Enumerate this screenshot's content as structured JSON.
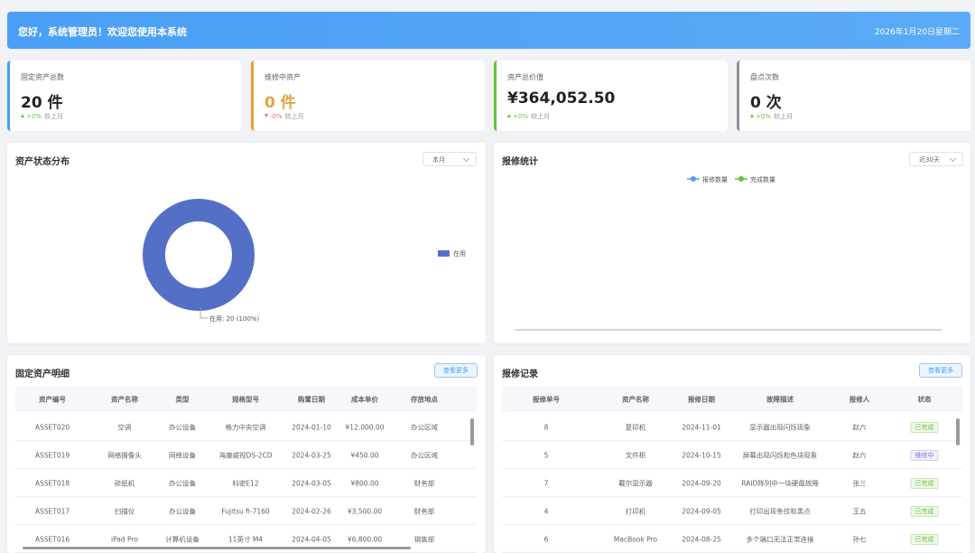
{
  "header": {
    "greeting": "您好，系统管理员！欢迎您使用本系统",
    "date": "2026年1月20日星期二"
  },
  "stats": [
    {
      "label": "固定资产总数",
      "value": "20 件",
      "trend": "+0%",
      "compare": "较上月",
      "color": "#409eff"
    },
    {
      "label": "维修中资产",
      "value": "0 件",
      "trend": "-0%",
      "compare": "较上月",
      "color": "#e6a23c"
    },
    {
      "label": "资产总价值",
      "value": "¥364,052.50",
      "trend": "+0%",
      "compare": "较上月",
      "color": "#67c23a"
    },
    {
      "label": "盘点次数",
      "value": "0 次",
      "trend": "+0%",
      "compare": "较上月",
      "color": "#909399"
    }
  ],
  "asset_status": {
    "title": "资产状态分布",
    "period": "本月",
    "chart": {
      "type": "pie",
      "categories": [
        "在用"
      ],
      "values": [
        20
      ],
      "value_labels": [
        "在用: 20 (100%)"
      ],
      "colors": [
        "#5470c6"
      ]
    }
  },
  "repair_stats": {
    "title": "报修统计",
    "period": "近30天",
    "chart": {
      "type": "line",
      "series": [
        {
          "name": "报修数量",
          "color": "#4e9ef0"
        },
        {
          "name": "完成数量",
          "color": "#67c23a"
        }
      ]
    }
  },
  "assets": {
    "title": "固定资产明细",
    "button": "查看更多",
    "columns": [
      "资产编号",
      "资产名称",
      "类型",
      "规格型号",
      "购置日期",
      "成本单价",
      "存放地点"
    ],
    "rows": [
      [
        "ASSET020",
        "空调",
        "办公设备",
        "格力中央空调",
        "2024-01-10",
        "¥12,000.00",
        "办公区域"
      ],
      [
        "ASSET019",
        "网络摄像头",
        "网络设备",
        "海康威视DS-2CD",
        "2024-03-25",
        "¥450.00",
        "办公区域"
      ],
      [
        "ASSET018",
        "碎纸机",
        "办公设备",
        "科密E12",
        "2024-03-05",
        "¥800.00",
        "财务部"
      ],
      [
        "ASSET017",
        "扫描仪",
        "办公设备",
        "Fujitsu fi-7160",
        "2024-02-26",
        "¥3,500.00",
        "财务部"
      ],
      [
        "ASSET016",
        "iPad Pro",
        "计算机设备",
        "11英寸 M4",
        "2024-04-05",
        "¥6,800.00",
        "销售部"
      ]
    ]
  },
  "repairs": {
    "title": "报修记录",
    "button": "查看更多",
    "columns": [
      "报修单号",
      "资产名称",
      "报修日期",
      "故障描述",
      "报修人",
      "状态"
    ],
    "rows": [
      [
        "8",
        "复印机",
        "2024-11-01",
        "显示器出现闪烁现象",
        "赵六",
        "已完成"
      ],
      [
        "5",
        "文件柜",
        "2024-10-15",
        "屏幕出现闪烁和色块现象",
        "赵六",
        "维修中"
      ],
      [
        "7",
        "戴尔显示器",
        "2024-09-20",
        "RAID阵列中一块硬盘故障",
        "张三",
        "已完成"
      ],
      [
        "4",
        "打印机",
        "2024-09-05",
        "打印出现条纹和黑点",
        "王五",
        "已完成"
      ],
      [
        "6",
        "MacBook Pro",
        "2024-08-25",
        "多个端口无法正常连接",
        "孙七",
        "已完成"
      ]
    ]
  }
}
